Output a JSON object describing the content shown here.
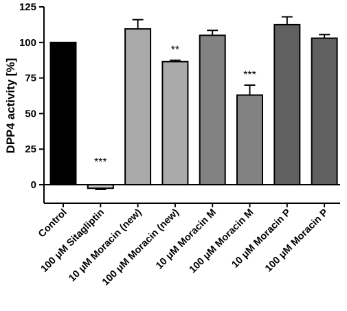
{
  "chart_data": {
    "type": "bar",
    "title": "",
    "xlabel": "",
    "ylabel": "DPP4 activity [%]",
    "ylim": [
      -13,
      125
    ],
    "yticks": [
      0,
      25,
      50,
      75,
      100,
      125
    ],
    "grid": false,
    "categories": [
      "Control",
      "100 μM Sitagliptin",
      "10 μM Moracin (new)",
      "100 μM Moracin (new)",
      "10 μM Moracin M",
      "100 μM Moracin M",
      "10 μM Moracin P",
      "100 μM Moracin P"
    ],
    "values": [
      100,
      -2.5,
      109.5,
      86.5,
      105,
      63,
      112.5,
      103
    ],
    "errors": [
      0,
      0.8,
      6.5,
      1,
      3.5,
      7,
      5.5,
      2.5
    ],
    "significance": [
      "",
      "***",
      "",
      "**",
      "",
      "***",
      "",
      ""
    ],
    "colors": [
      "#000000",
      "#c8c8c8",
      "#aaaaaa",
      "#aaaaaa",
      "#828282",
      "#828282",
      "#606060",
      "#606060"
    ]
  }
}
